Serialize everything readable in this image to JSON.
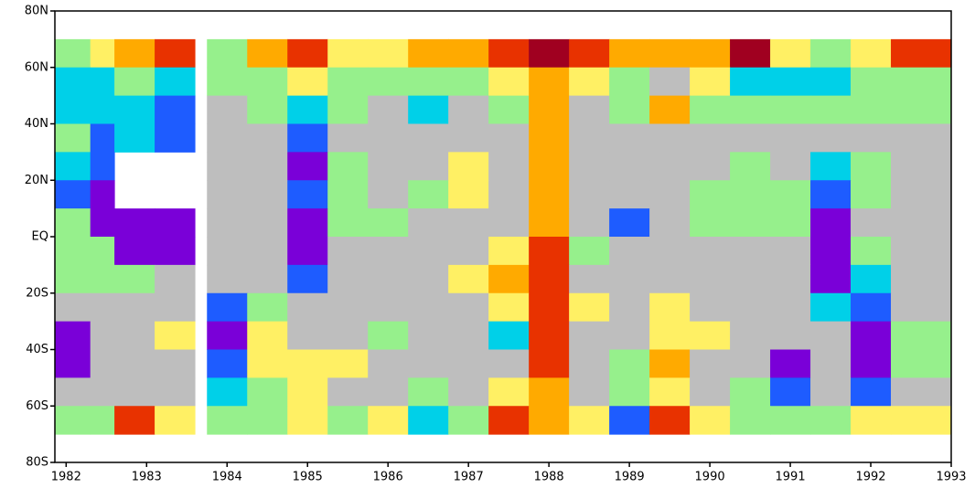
{
  "chart_data": {
    "type": "heatmap",
    "x_edges": [
      1981.86,
      1982.3,
      1982.6,
      1983.1,
      1983.6,
      1983.75,
      1984.25,
      1984.75,
      1985.25,
      1985.75,
      1986.25,
      1986.75,
      1987.25,
      1987.75,
      1988.25,
      1988.75,
      1989.25,
      1989.75,
      1990.25,
      1990.75,
      1991.25,
      1991.75,
      1992.25,
      1993
    ],
    "y_edges": [
      70,
      60,
      50,
      40,
      30,
      20,
      10,
      0,
      -10,
      -20,
      -30,
      -40,
      -50,
      -60,
      -70
    ],
    "z": [
      [
        4,
        6,
        7,
        8,
        null,
        4,
        7,
        8,
        6,
        6,
        7,
        7,
        8,
        9,
        8,
        7,
        7,
        7,
        9,
        6,
        4,
        6,
        8
      ],
      [
        3,
        3,
        4,
        3,
        null,
        4,
        4,
        6,
        4,
        4,
        4,
        4,
        6,
        7,
        6,
        4,
        5,
        6,
        3,
        3,
        3,
        4,
        4
      ],
      [
        3,
        3,
        3,
        2,
        null,
        5,
        4,
        3,
        4,
        5,
        3,
        5,
        4,
        7,
        5,
        4,
        7,
        4,
        4,
        4,
        4,
        4,
        4
      ],
      [
        4,
        2,
        3,
        2,
        null,
        5,
        5,
        2,
        5,
        5,
        5,
        5,
        5,
        7,
        5,
        5,
        5,
        5,
        5,
        5,
        5,
        5,
        5
      ],
      [
        3,
        2,
        null,
        null,
        null,
        5,
        5,
        1,
        4,
        5,
        5,
        6,
        5,
        7,
        5,
        5,
        5,
        5,
        4,
        5,
        3,
        4,
        5
      ],
      [
        2,
        1,
        null,
        null,
        null,
        5,
        5,
        2,
        4,
        5,
        4,
        6,
        5,
        7,
        5,
        5,
        5,
        4,
        4,
        4,
        2,
        4,
        5
      ],
      [
        4,
        1,
        1,
        1,
        null,
        5,
        5,
        1,
        4,
        4,
        5,
        5,
        5,
        7,
        5,
        2,
        5,
        4,
        4,
        4,
        1,
        5,
        5
      ],
      [
        4,
        4,
        1,
        1,
        null,
        5,
        5,
        1,
        5,
        5,
        5,
        5,
        6,
        8,
        4,
        5,
        5,
        5,
        5,
        5,
        1,
        4,
        5
      ],
      [
        4,
        4,
        4,
        5,
        null,
        5,
        5,
        2,
        5,
        5,
        5,
        6,
        7,
        8,
        5,
        5,
        5,
        5,
        5,
        5,
        1,
        3,
        5
      ],
      [
        5,
        5,
        5,
        5,
        null,
        2,
        4,
        5,
        5,
        5,
        5,
        5,
        6,
        8,
        6,
        5,
        6,
        5,
        5,
        5,
        3,
        2,
        5
      ],
      [
        1,
        5,
        5,
        6,
        null,
        1,
        6,
        5,
        5,
        4,
        5,
        5,
        3,
        8,
        5,
        5,
        6,
        6,
        5,
        5,
        5,
        1,
        4
      ],
      [
        1,
        5,
        5,
        5,
        null,
        2,
        6,
        6,
        6,
        5,
        5,
        5,
        5,
        8,
        5,
        4,
        7,
        5,
        5,
        1,
        5,
        1,
        4
      ],
      [
        5,
        5,
        5,
        5,
        null,
        3,
        4,
        6,
        5,
        5,
        4,
        5,
        6,
        7,
        5,
        4,
        6,
        5,
        4,
        2,
        5,
        2,
        5
      ],
      [
        4,
        4,
        8,
        6,
        null,
        4,
        4,
        6,
        4,
        6,
        3,
        4,
        8,
        7,
        6,
        2,
        8,
        6,
        4,
        4,
        4,
        6,
        6
      ]
    ],
    "palette": [
      "#7a00d8",
      "#1e5cff",
      "#00d0e8",
      "#96f08c",
      "#bebebe",
      "#fff064",
      "#ffaa00",
      "#e83200",
      "#a00020"
    ],
    "xlim": [
      1981.86,
      1993
    ],
    "ylim": [
      -80,
      80
    ],
    "xticks": [
      1982,
      1983,
      1984,
      1985,
      1986,
      1987,
      1988,
      1989,
      1990,
      1991,
      1992,
      1993
    ],
    "yticks": [
      {
        "value": 80,
        "label": "80N"
      },
      {
        "value": 60,
        "label": "60N"
      },
      {
        "value": 40,
        "label": "40N"
      },
      {
        "value": 20,
        "label": "20N"
      },
      {
        "value": 0,
        "label": "EQ"
      },
      {
        "value": -20,
        "label": "20S"
      },
      {
        "value": -40,
        "label": "40S"
      },
      {
        "value": -60,
        "label": "60S"
      },
      {
        "value": -80,
        "label": "80S"
      }
    ]
  }
}
